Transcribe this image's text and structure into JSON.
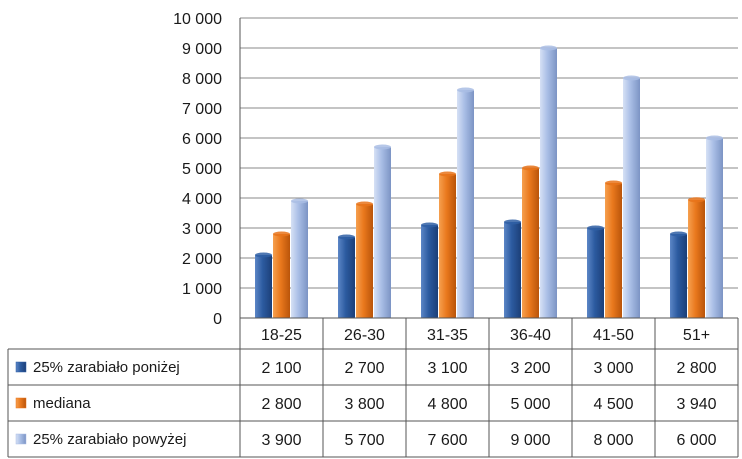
{
  "chart_data": {
    "type": "bar",
    "categories": [
      "18-25",
      "26-30",
      "31-35",
      "36-40",
      "41-50",
      "51+"
    ],
    "series": [
      {
        "name": "25% zarabiało poniżej",
        "values": [
          2100,
          2700,
          3100,
          3200,
          3000,
          2800
        ],
        "color": "#2f5fa4"
      },
      {
        "name": "mediana",
        "values": [
          2800,
          3800,
          4800,
          5000,
          4500,
          3940
        ],
        "color": "#e8731a"
      },
      {
        "name": "25% zarabiało powyżej",
        "values": [
          3900,
          5700,
          7600,
          9000,
          8000,
          6000
        ],
        "color": "#a9bde4"
      }
    ],
    "ylim": [
      0,
      10000
    ],
    "yticks": [
      0,
      1000,
      2000,
      3000,
      4000,
      5000,
      6000,
      7000,
      8000,
      9000,
      10000
    ],
    "ytick_labels": [
      "0",
      "1 000",
      "2 000",
      "3 000",
      "4 000",
      "5 000",
      "6 000",
      "7 000",
      "8 000",
      "9 000",
      "10 000"
    ],
    "data_table": {
      "rows": [
        [
          "2 100",
          "2 700",
          "3 100",
          "3 200",
          "3 000",
          "2 800"
        ],
        [
          "2 800",
          "3 800",
          "4 800",
          "5 000",
          "4 500",
          "3 940"
        ],
        [
          "3 900",
          "5 700",
          "7 600",
          "9 000",
          "8 000",
          "6 000"
        ]
      ]
    },
    "grid": true,
    "legend": "data-table"
  }
}
